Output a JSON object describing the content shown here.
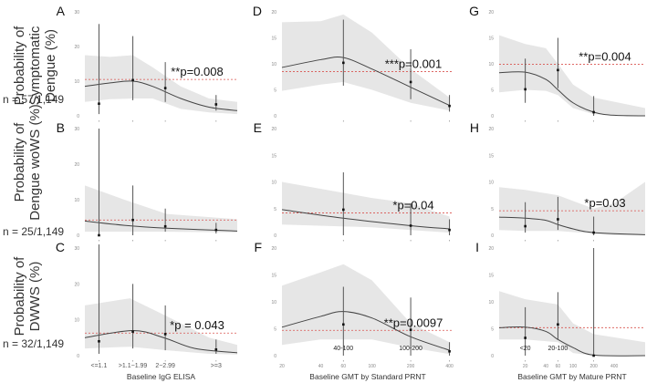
{
  "colors": {
    "band": "#e6e6e6",
    "curve": "#444444",
    "ref": "#d9534f",
    "point": "#111111"
  },
  "row_labels": [
    {
      "line1": "Probability of",
      "line2": "Symptomatic",
      "line3": "Dengue (%)",
      "n": "n = 57/1,149"
    },
    {
      "line1": "Probability of",
      "line2": "Dengue woWS (%)",
      "line3": "",
      "n": "n = 25/1,149"
    },
    {
      "line1": "Probability of",
      "line2": "DWWS (%)",
      "line3": "",
      "n": "n = 32/1,149"
    }
  ],
  "chart_data": [
    {
      "panel": "A",
      "type": "line",
      "xscale": "linear",
      "xlim": [
        0.6,
        6
      ],
      "ylim": [
        0,
        30
      ],
      "yticks": [
        0,
        10,
        20,
        30
      ],
      "ref": 10.5,
      "p": "**p=0.008",
      "points": [
        [
          1.1,
          3.5,
          0.5,
          26.5
        ],
        [
          2.3,
          10.3,
          4.5,
          23
        ],
        [
          3.45,
          8,
          4,
          15.5
        ],
        [
          5.25,
          3.3,
          1.5,
          6
        ]
      ],
      "curve": [
        [
          0.6,
          8.5
        ],
        [
          1.5,
          9.5
        ],
        [
          2.3,
          10
        ],
        [
          3,
          8.5
        ],
        [
          4,
          5
        ],
        [
          5,
          2.5
        ],
        [
          6,
          1.5
        ]
      ],
      "band": [
        [
          0.6,
          4,
          17.5
        ],
        [
          1.5,
          4.8,
          17
        ],
        [
          2.3,
          5,
          17.5
        ],
        [
          3,
          5,
          14
        ],
        [
          4,
          2,
          8.5
        ],
        [
          5,
          1,
          5
        ],
        [
          6,
          0.5,
          4
        ]
      ]
    },
    {
      "panel": "D",
      "type": "line",
      "xscale": "log",
      "xlim": [
        20,
        430
      ],
      "ylim": [
        0,
        20
      ],
      "yticks": [
        0,
        5,
        10,
        15,
        20
      ],
      "ref": 8.5,
      "p": "***p=0.001",
      "points": [
        [
          60,
          10.2,
          5.8,
          18.5
        ],
        [
          200,
          6.5,
          3.2,
          12.8
        ],
        [
          400,
          1.9,
          0.8,
          4
        ]
      ],
      "curve": [
        [
          20,
          9.3
        ],
        [
          40,
          10.8
        ],
        [
          60,
          11.2
        ],
        [
          100,
          9
        ],
        [
          200,
          5.5
        ],
        [
          400,
          2
        ]
      ],
      "band": [
        [
          20,
          4.8,
          18
        ],
        [
          40,
          6,
          18.2
        ],
        [
          60,
          6.5,
          19.5
        ],
        [
          100,
          5,
          16
        ],
        [
          200,
          2.5,
          9
        ],
        [
          400,
          1,
          3.5
        ]
      ]
    },
    {
      "panel": "G",
      "type": "line",
      "xscale": "log",
      "xlim": [
        8.3,
        1130
      ],
      "ylim": [
        0,
        20
      ],
      "yticks": [
        0,
        5,
        10,
        15,
        20
      ],
      "ref": 9.9,
      "p": "**p=0.004",
      "points": [
        [
          20,
          5.1,
          2.5,
          11
        ],
        [
          60,
          8.8,
          5.3,
          15
        ],
        [
          200,
          0.7,
          0,
          3.8
        ]
      ],
      "curve": [
        [
          8.3,
          8.3
        ],
        [
          20,
          8.4
        ],
        [
          40,
          7
        ],
        [
          60,
          5
        ],
        [
          100,
          2.5
        ],
        [
          200,
          0.7
        ],
        [
          400,
          0.1
        ],
        [
          1130,
          0
        ]
      ],
      "band": [
        [
          8.3,
          4.5,
          15.5
        ],
        [
          20,
          5,
          13.8
        ],
        [
          40,
          4.8,
          13
        ],
        [
          60,
          4,
          10
        ],
        [
          100,
          1.5,
          6
        ],
        [
          200,
          0.3,
          3.5
        ],
        [
          1130,
          0,
          1.5
        ]
      ]
    },
    {
      "panel": "B",
      "type": "line",
      "xscale": "linear",
      "xlim": [
        0.6,
        6
      ],
      "ylim": [
        0,
        30
      ],
      "yticks": [
        0,
        10,
        20,
        30
      ],
      "ref": 4.3,
      "p": "",
      "points": [
        [
          1.1,
          0,
          0,
          30
        ],
        [
          2.3,
          4.3,
          0,
          14
        ],
        [
          3.45,
          2.5,
          1,
          7.5
        ],
        [
          5.25,
          1.5,
          0.5,
          3.5
        ]
      ],
      "curve": [
        [
          0.6,
          4
        ],
        [
          2,
          2.8
        ],
        [
          3.5,
          2
        ],
        [
          6,
          1.2
        ]
      ],
      "band": [
        [
          0.6,
          1,
          14
        ],
        [
          2,
          1,
          10
        ],
        [
          3.5,
          1,
          6
        ],
        [
          6,
          0.8,
          4.5
        ]
      ]
    },
    {
      "panel": "E",
      "type": "line",
      "xscale": "log",
      "xlim": [
        20,
        430
      ],
      "ylim": [
        0,
        20
      ],
      "yticks": [
        0,
        5,
        10,
        15,
        20
      ],
      "ref": 4.2,
      "p": "*p=0.04",
      "points": [
        [
          60,
          4.8,
          0,
          11.8
        ],
        [
          200,
          1.8,
          0,
          6
        ],
        [
          400,
          1,
          0,
          3
        ]
      ],
      "curve": [
        [
          20,
          4.8
        ],
        [
          60,
          3.2
        ],
        [
          200,
          1.8
        ],
        [
          400,
          1.2
        ]
      ],
      "band": [
        [
          20,
          2,
          10
        ],
        [
          100,
          1.5,
          7
        ],
        [
          200,
          1,
          6
        ],
        [
          400,
          0.5,
          3.5
        ]
      ]
    },
    {
      "panel": "H",
      "type": "line",
      "xscale": "log",
      "xlim": [
        8.3,
        1130
      ],
      "ylim": [
        0,
        20
      ],
      "yticks": [
        0,
        5,
        10,
        15,
        20
      ],
      "ref": 4.6,
      "p": "*p=0.03",
      "points": [
        [
          20,
          1.7,
          0.5,
          6.2
        ],
        [
          60,
          3,
          1,
          7.2
        ],
        [
          200,
          0.5,
          0,
          3.5
        ]
      ],
      "curve": [
        [
          8.3,
          3.4
        ],
        [
          20,
          3.2
        ],
        [
          40,
          2.8
        ],
        [
          60,
          2
        ],
        [
          100,
          1.2
        ],
        [
          200,
          0.5
        ],
        [
          1130,
          0.1
        ]
      ],
      "band": [
        [
          8.3,
          1,
          9
        ],
        [
          20,
          0.8,
          8.5
        ],
        [
          60,
          0.8,
          7.5
        ],
        [
          200,
          0.3,
          5
        ],
        [
          400,
          0,
          6
        ],
        [
          1130,
          0,
          10
        ]
      ]
    },
    {
      "panel": "C",
      "type": "line",
      "xscale": "linear",
      "xlim": [
        0.6,
        6
      ],
      "ylim": [
        0,
        30
      ],
      "yticks": [
        0,
        10,
        20,
        30
      ],
      "ref": 6.3,
      "p": "*p = 0.043",
      "points": [
        [
          1.1,
          4,
          0.5,
          31
        ],
        [
          2.3,
          6.7,
          2,
          20
        ],
        [
          3.45,
          6,
          1.5,
          14
        ],
        [
          5.25,
          1.7,
          0.5,
          4.5
        ]
      ],
      "curve": [
        [
          0.6,
          5
        ],
        [
          2.3,
          7
        ],
        [
          3.4,
          5
        ],
        [
          4.5,
          2
        ],
        [
          6,
          0.8
        ]
      ],
      "band": [
        [
          0.6,
          2,
          14
        ],
        [
          2.2,
          2.5,
          16
        ],
        [
          3.5,
          1.5,
          11
        ],
        [
          5,
          0.5,
          5
        ],
        [
          6,
          0.3,
          3
        ]
      ],
      "xticks": [
        1.1,
        2.3,
        3.45,
        5.25
      ],
      "xticklabels": [
        "<=1.1",
        ">1.1−1.99",
        "2−2.99",
        ">=3"
      ],
      "xlabel": "Baseline IgG ELISA"
    },
    {
      "panel": "F",
      "type": "line",
      "xscale": "log",
      "xlim": [
        20,
        430
      ],
      "ylim": [
        0,
        20
      ],
      "yticks": [
        0,
        5,
        10,
        15,
        20
      ],
      "ref": 4.7,
      "p": "**p=0.0097",
      "points": [
        [
          60,
          5.8,
          0,
          12.8
        ],
        [
          200,
          4.8,
          0,
          10.8
        ],
        [
          400,
          0.8,
          0,
          2.5
        ]
      ],
      "curve": [
        [
          20,
          5.3
        ],
        [
          40,
          7.3
        ],
        [
          60,
          8.2
        ],
        [
          100,
          7
        ],
        [
          200,
          3.5
        ],
        [
          400,
          1
        ]
      ],
      "band": [
        [
          20,
          2,
          13
        ],
        [
          40,
          3,
          15.5
        ],
        [
          60,
          3,
          17
        ],
        [
          100,
          3,
          14
        ],
        [
          200,
          1.5,
          6
        ],
        [
          400,
          0.3,
          2.5
        ]
      ],
      "cats": [
        [
          60,
          "40-100"
        ],
        [
          200,
          "100-200"
        ]
      ],
      "xticks": [
        20,
        40,
        60,
        100,
        200,
        400
      ],
      "xticklabels": [
        "20",
        "40",
        "60",
        "100",
        "200",
        "400"
      ],
      "xlabel": "Baseline GMT by Standard PRNT"
    },
    {
      "panel": "I",
      "type": "line",
      "xscale": "log",
      "xlim": [
        8.3,
        1130
      ],
      "ylim": [
        0,
        20
      ],
      "yticks": [
        0,
        5,
        10,
        15,
        20
      ],
      "ref": 5.2,
      "p": "",
      "points": [
        [
          20,
          3.3,
          0,
          9
        ],
        [
          60,
          5.8,
          3,
          11.8
        ],
        [
          200,
          0,
          0,
          20
        ]
      ],
      "curve": [
        [
          8.3,
          5.2
        ],
        [
          20,
          5.3
        ],
        [
          40,
          4.5
        ],
        [
          60,
          3
        ],
        [
          100,
          1.5
        ],
        [
          200,
          0.1
        ],
        [
          1130,
          0
        ]
      ],
      "band": [
        [
          8.3,
          3,
          12
        ],
        [
          20,
          3,
          10.5
        ],
        [
          60,
          2.5,
          9.5
        ],
        [
          100,
          0.5,
          6
        ],
        [
          200,
          0,
          4
        ],
        [
          1130,
          0,
          2.5
        ]
      ],
      "cats": [
        [
          20,
          "<20"
        ],
        [
          60,
          "20-100"
        ]
      ],
      "xticks": [
        20,
        40,
        60,
        100,
        200,
        400
      ],
      "xticklabels": [
        "20",
        "40",
        "60",
        "100",
        "200",
        "400"
      ],
      "xlabel": "Baseline GMT by Mature PRNT"
    }
  ]
}
